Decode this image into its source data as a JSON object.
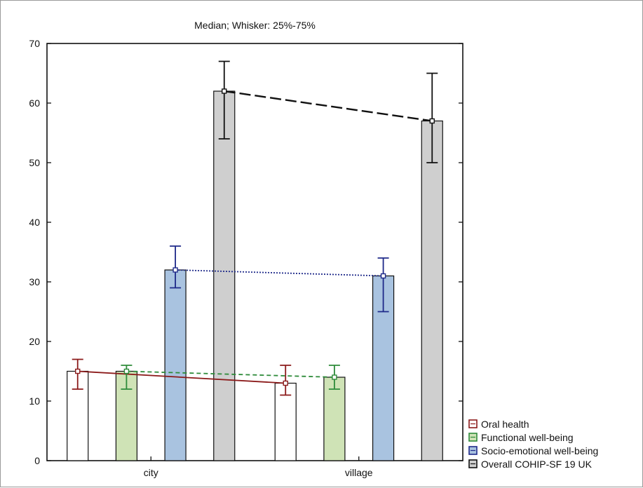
{
  "chart_data": {
    "type": "bar",
    "title": "Median; Whisker: 25%-75%",
    "xlabel": "",
    "ylabel": "",
    "categories": [
      "city",
      "village"
    ],
    "ylim": [
      0,
      70
    ],
    "yticks": [
      0,
      10,
      20,
      30,
      40,
      50,
      60,
      70
    ],
    "grid": false,
    "legend_position": "bottom-right",
    "series": [
      {
        "name": "Oral health",
        "bar_color": "#ffffff",
        "line_color": "#8b1a1a",
        "line_style": "solid",
        "values": [
          15,
          13
        ],
        "whisker_low": [
          12,
          11
        ],
        "whisker_high": [
          17,
          16
        ]
      },
      {
        "name": "Functional well-being",
        "bar_color": "#cfe3b6",
        "line_color": "#2e8b3a",
        "line_style": "dashed",
        "values": [
          15,
          14
        ],
        "whisker_low": [
          12,
          12
        ],
        "whisker_high": [
          16,
          16
        ]
      },
      {
        "name": "Socio-emotional well-being",
        "bar_color": "#a9c3e0",
        "line_color": "#1f2a8a",
        "line_style": "dotted",
        "values": [
          32,
          31
        ],
        "whisker_low": [
          29,
          25
        ],
        "whisker_high": [
          36,
          34
        ]
      },
      {
        "name": "Overall COHIP-SF 19 UK",
        "bar_color": "#cfcfcf",
        "line_color": "#111111",
        "line_style": "longdash",
        "values": [
          62,
          57
        ],
        "whisker_low": [
          54,
          50
        ],
        "whisker_high": [
          67,
          65
        ]
      }
    ]
  }
}
